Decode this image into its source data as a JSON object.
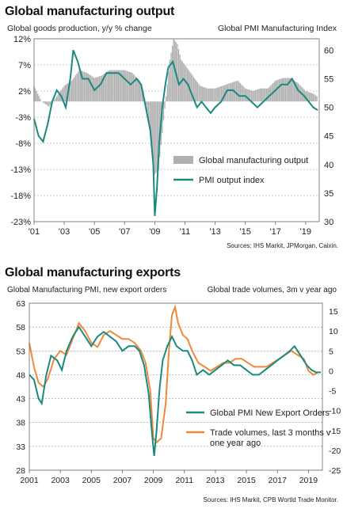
{
  "chart_data": [
    {
      "type": "bar+line",
      "title": "Global manufacturing output",
      "left_axis_label": "Global goods production, y/y % change",
      "right_axis_label": "Global PMI Manufacturing Index",
      "source": "Sources: IHS Markit, JPMorgan, Caixin.",
      "left_ticks": [
        "12%",
        "7%",
        "2%",
        "-3%",
        "-8%",
        "-13%",
        "-18%",
        "-23%"
      ],
      "left_tick_values": [
        12,
        7,
        2,
        -3,
        -8,
        -13,
        -18,
        -23
      ],
      "right_ticks": [
        "60",
        "55",
        "50",
        "45",
        "40",
        "35",
        "30"
      ],
      "right_tick_values": [
        60,
        55,
        50,
        45,
        40,
        35,
        30
      ],
      "x_ticks": [
        "'01",
        "'03",
        "'05",
        "'07",
        "'09",
        "'11",
        "'13",
        "'15",
        "'17",
        "'19"
      ],
      "x_tick_values": [
        2001,
        2003,
        2005,
        2007,
        2009,
        2011,
        2013,
        2015,
        2017,
        2019
      ],
      "xlim": [
        2001,
        2019.9
      ],
      "ylim_left": [
        -23,
        12
      ],
      "ylim_right": [
        30,
        62
      ],
      "colors": {
        "bars": "#b0b0b0",
        "line": "#1a8a80"
      },
      "legend": [
        {
          "label": "Global manufacturing output",
          "kind": "bar"
        },
        {
          "label": "PMI output index",
          "kind": "line"
        }
      ],
      "series": [
        {
          "name": "Global manufacturing output",
          "axis": "left",
          "x": [
            2001.0,
            2001.5,
            2002.0,
            2002.5,
            2003.0,
            2003.5,
            2004.0,
            2004.5,
            2005.0,
            2005.5,
            2006.0,
            2006.5,
            2007.0,
            2007.5,
            2008.0,
            2008.25,
            2008.5,
            2008.75,
            2009.0,
            2009.25,
            2009.5,
            2009.75,
            2010.0,
            2010.25,
            2010.5,
            2010.75,
            2011.0,
            2011.5,
            2012.0,
            2012.5,
            2013.0,
            2013.5,
            2014.0,
            2014.5,
            2015.0,
            2015.5,
            2016.0,
            2016.5,
            2017.0,
            2017.5,
            2018.0,
            2018.5,
            2019.0,
            2019.5,
            2019.75
          ],
          "values": [
            3,
            0,
            -1,
            1,
            3,
            4,
            6,
            5.5,
            4.5,
            5,
            6,
            6,
            6,
            5.5,
            4,
            2,
            -2,
            -7,
            -14,
            -13,
            -6,
            1,
            8,
            12,
            11,
            8,
            7,
            5,
            3,
            2.5,
            2.5,
            3,
            3.5,
            4,
            2.5,
            2,
            2.5,
            2.5,
            4,
            4.5,
            4.5,
            3.5,
            2,
            1.5,
            1
          ]
        },
        {
          "name": "PMI output index",
          "axis": "right",
          "x": [
            2001.0,
            2001.3,
            2001.6,
            2001.9,
            2002.2,
            2002.5,
            2002.8,
            2003.1,
            2003.4,
            2003.6,
            2003.9,
            2004.2,
            2004.6,
            2005.0,
            2005.4,
            2005.8,
            2006.2,
            2006.6,
            2007.0,
            2007.4,
            2007.8,
            2008.1,
            2008.4,
            2008.7,
            2008.9,
            2009.0,
            2009.15,
            2009.3,
            2009.5,
            2009.7,
            2009.9,
            2010.2,
            2010.4,
            2010.6,
            2010.9,
            2011.2,
            2011.5,
            2011.8,
            2012.1,
            2012.4,
            2012.7,
            2013.0,
            2013.4,
            2013.8,
            2014.2,
            2014.6,
            2015.0,
            2015.4,
            2015.8,
            2016.2,
            2016.6,
            2017.0,
            2017.4,
            2017.8,
            2018.1,
            2018.5,
            2018.9,
            2019.2,
            2019.5,
            2019.8
          ],
          "values": [
            48,
            45,
            44,
            47,
            51,
            53,
            52,
            50,
            55,
            60,
            58,
            55,
            55,
            53,
            54,
            56,
            56,
            56,
            55,
            54,
            55,
            54,
            50,
            46,
            40,
            31,
            36,
            44,
            50,
            54,
            57,
            58,
            56,
            54,
            55,
            54,
            52,
            50,
            51,
            50,
            49,
            50,
            51,
            53,
            53,
            52,
            52,
            51,
            50,
            51,
            52,
            53,
            54,
            54,
            55,
            53,
            52,
            51,
            50,
            49.5
          ]
        }
      ]
    },
    {
      "type": "line",
      "title": "Global manufacturing exports",
      "left_axis_label": "Global Manufacturing PMI, new export orders",
      "right_axis_label": "Global trade volumes, 3m v year ago",
      "source": "Sources: IHS Markit, CPB Wortld Trade Monitor.",
      "left_ticks": [
        "63",
        "58",
        "53",
        "48",
        "43",
        "38",
        "33",
        "28"
      ],
      "left_tick_values": [
        63,
        58,
        53,
        48,
        43,
        38,
        33,
        28
      ],
      "right_ticks": [
        "15",
        "10",
        "5",
        "0",
        "-5",
        "-10",
        "-15",
        "-20",
        "-25"
      ],
      "right_tick_values": [
        15,
        10,
        5,
        0,
        -5,
        -10,
        -15,
        -20,
        -25
      ],
      "x_ticks": [
        "2001",
        "2003",
        "2005",
        "2007",
        "2009",
        "2011",
        "2013",
        "2015",
        "2017",
        "2019"
      ],
      "x_tick_values": [
        2001,
        2003,
        2005,
        2007,
        2009,
        2011,
        2013,
        2015,
        2017,
        2019
      ],
      "xlim": [
        2001,
        2019.9
      ],
      "ylim_left": [
        28,
        63
      ],
      "ylim_right": [
        -25,
        17
      ],
      "colors": {
        "pmi": "#1a8a80",
        "trade": "#f0883a"
      },
      "legend": [
        {
          "label": "Global PMI New Export Orders",
          "kind": "line"
        },
        {
          "label": "Trade volumes, last 3 months v one year ago",
          "kind": "line"
        }
      ],
      "series": [
        {
          "name": "Global PMI New Export Orders",
          "axis": "left",
          "x": [
            2001.0,
            2001.3,
            2001.6,
            2001.8,
            2002.1,
            2002.4,
            2002.8,
            2003.1,
            2003.4,
            2003.8,
            2004.2,
            2004.6,
            2005.0,
            2005.4,
            2005.8,
            2006.2,
            2006.6,
            2007.0,
            2007.4,
            2007.8,
            2008.1,
            2008.4,
            2008.7,
            2008.9,
            2009.05,
            2009.2,
            2009.4,
            2009.6,
            2009.9,
            2010.2,
            2010.5,
            2010.9,
            2011.2,
            2011.5,
            2011.8,
            2012.2,
            2012.6,
            2013.0,
            2013.4,
            2013.8,
            2014.2,
            2014.6,
            2015.0,
            2015.4,
            2015.8,
            2016.2,
            2016.6,
            2017.0,
            2017.4,
            2017.8,
            2018.1,
            2018.5,
            2018.9,
            2019.2,
            2019.5,
            2019.8
          ],
          "values": [
            48,
            47,
            43,
            42,
            48,
            52,
            51,
            49,
            53,
            56,
            58,
            56,
            54,
            56,
            57,
            56,
            55,
            53,
            54,
            54,
            53,
            50,
            44,
            36,
            31,
            36,
            45,
            51,
            54,
            56,
            54,
            53,
            53,
            51,
            48,
            49,
            48,
            49,
            50,
            51,
            50,
            50,
            49,
            48,
            48,
            49,
            50,
            51,
            52,
            53,
            54,
            52,
            50,
            49,
            48.5,
            48.5
          ]
        },
        {
          "name": "Trade volumes, last 3 months v one year ago",
          "axis": "right",
          "x": [
            2001.0,
            2001.3,
            2001.6,
            2001.9,
            2002.2,
            2002.6,
            2003.0,
            2003.4,
            2003.8,
            2004.2,
            2004.6,
            2005.0,
            2005.4,
            2005.8,
            2006.2,
            2006.6,
            2007.0,
            2007.4,
            2007.8,
            2008.2,
            2008.5,
            2008.8,
            2009.0,
            2009.2,
            2009.5,
            2009.8,
            2010.0,
            2010.2,
            2010.4,
            2010.6,
            2010.9,
            2011.2,
            2011.5,
            2011.9,
            2012.3,
            2012.7,
            2013.1,
            2013.5,
            2013.9,
            2014.3,
            2014.7,
            2015.1,
            2015.5,
            2015.9,
            2016.3,
            2016.7,
            2017.1,
            2017.5,
            2017.9,
            2018.3,
            2018.7,
            2019.0,
            2019.3,
            2019.6
          ],
          "values": [
            7,
            1,
            -3,
            -4,
            -2,
            3,
            5,
            4,
            8,
            12,
            10,
            7,
            6,
            9,
            10,
            9,
            8,
            8,
            7,
            5,
            2,
            -5,
            -17,
            -18,
            -17,
            -8,
            5,
            14,
            16,
            12,
            9,
            8,
            5,
            2,
            1,
            0,
            1,
            2,
            2,
            3,
            3,
            2,
            1,
            1,
            1,
            2,
            3,
            4,
            5,
            4,
            3,
            0,
            -1,
            -0.5
          ]
        }
      ]
    }
  ]
}
